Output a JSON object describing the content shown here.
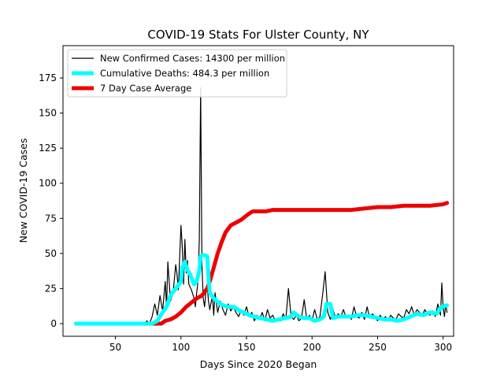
{
  "chart_data": {
    "type": "line",
    "title": "COVID-19 Stats For Ulster County, NY",
    "xlabel": "Days Since 2020 Began",
    "ylabel": "New COVID-19 Cases",
    "xlim": [
      10,
      308
    ],
    "ylim": [
      -9,
      198
    ],
    "x_ticks": [
      50,
      100,
      150,
      200,
      250,
      300
    ],
    "y_ticks": [
      0,
      25,
      50,
      75,
      100,
      125,
      150,
      175
    ],
    "grid": false,
    "legend_position": "top-left",
    "series": [
      {
        "name": "New Confirmed Cases: 14300 per million",
        "color": "#000000",
        "points": [
          [
            20,
            0
          ],
          [
            72,
            0
          ],
          [
            74,
            2
          ],
          [
            76,
            0
          ],
          [
            78,
            5
          ],
          [
            80,
            14
          ],
          [
            82,
            6
          ],
          [
            84,
            20
          ],
          [
            86,
            9
          ],
          [
            88,
            30
          ],
          [
            89,
            12
          ],
          [
            90,
            44
          ],
          [
            92,
            16
          ],
          [
            94,
            22
          ],
          [
            96,
            42
          ],
          [
            97,
            35
          ],
          [
            98,
            24
          ],
          [
            100,
            70
          ],
          [
            101,
            55
          ],
          [
            102,
            28
          ],
          [
            103,
            60
          ],
          [
            104,
            36
          ],
          [
            105,
            45
          ],
          [
            106,
            28
          ],
          [
            108,
            24
          ],
          [
            110,
            18
          ],
          [
            111,
            12
          ],
          [
            112,
            22
          ],
          [
            113,
            30
          ],
          [
            114,
            60
          ],
          [
            115,
            168
          ],
          [
            116,
            42
          ],
          [
            117,
            18
          ],
          [
            118,
            12
          ],
          [
            119,
            22
          ],
          [
            120,
            28
          ],
          [
            121,
            16
          ],
          [
            122,
            10
          ],
          [
            124,
            20
          ],
          [
            125,
            6
          ],
          [
            126,
            22
          ],
          [
            128,
            8
          ],
          [
            130,
            16
          ],
          [
            132,
            10
          ],
          [
            134,
            6
          ],
          [
            136,
            14
          ],
          [
            138,
            9
          ],
          [
            140,
            12
          ],
          [
            142,
            8
          ],
          [
            144,
            5
          ],
          [
            146,
            10
          ],
          [
            148,
            6
          ],
          [
            150,
            12
          ],
          [
            152,
            5
          ],
          [
            154,
            8
          ],
          [
            156,
            2
          ],
          [
            158,
            6
          ],
          [
            160,
            3
          ],
          [
            162,
            8
          ],
          [
            164,
            2
          ],
          [
            166,
            10
          ],
          [
            168,
            4
          ],
          [
            170,
            6
          ],
          [
            172,
            2
          ],
          [
            174,
            4
          ],
          [
            176,
            2
          ],
          [
            178,
            7
          ],
          [
            180,
            3
          ],
          [
            182,
            25
          ],
          [
            184,
            5
          ],
          [
            186,
            3
          ],
          [
            188,
            6
          ],
          [
            190,
            2
          ],
          [
            192,
            4
          ],
          [
            194,
            17
          ],
          [
            196,
            3
          ],
          [
            198,
            6
          ],
          [
            200,
            2
          ],
          [
            202,
            10
          ],
          [
            204,
            3
          ],
          [
            206,
            5
          ],
          [
            208,
            20
          ],
          [
            210,
            37
          ],
          [
            212,
            8
          ],
          [
            214,
            3
          ],
          [
            216,
            10
          ],
          [
            218,
            4
          ],
          [
            220,
            7
          ],
          [
            222,
            5
          ],
          [
            224,
            10
          ],
          [
            226,
            4
          ],
          [
            228,
            6
          ],
          [
            230,
            3
          ],
          [
            232,
            12
          ],
          [
            234,
            5
          ],
          [
            236,
            4
          ],
          [
            238,
            8
          ],
          [
            240,
            3
          ],
          [
            242,
            12
          ],
          [
            244,
            4
          ],
          [
            246,
            7
          ],
          [
            248,
            5
          ],
          [
            250,
            2
          ],
          [
            252,
            6
          ],
          [
            254,
            3
          ],
          [
            256,
            5
          ],
          [
            258,
            2
          ],
          [
            260,
            6
          ],
          [
            262,
            4
          ],
          [
            264,
            3
          ],
          [
            266,
            7
          ],
          [
            268,
            5
          ],
          [
            270,
            4
          ],
          [
            272,
            10
          ],
          [
            274,
            7
          ],
          [
            276,
            12
          ],
          [
            278,
            6
          ],
          [
            280,
            10
          ],
          [
            282,
            8
          ],
          [
            284,
            5
          ],
          [
            286,
            10
          ],
          [
            288,
            7
          ],
          [
            290,
            6
          ],
          [
            292,
            9
          ],
          [
            294,
            5
          ],
          [
            296,
            14
          ],
          [
            298,
            6
          ],
          [
            299,
            29
          ],
          [
            300,
            12
          ],
          [
            301,
            5
          ],
          [
            302,
            14
          ],
          [
            303,
            8
          ]
        ]
      },
      {
        "name": "Cumulative Deaths: 484.3 per million",
        "color": "#00ffff",
        "points": [
          [
            20,
            0
          ],
          [
            78,
            0
          ],
          [
            82,
            2
          ],
          [
            86,
            8
          ],
          [
            89,
            12
          ],
          [
            92,
            20
          ],
          [
            96,
            25
          ],
          [
            100,
            30
          ],
          [
            101,
            40
          ],
          [
            103,
            44
          ],
          [
            105,
            38
          ],
          [
            107,
            35
          ],
          [
            110,
            28
          ],
          [
            112,
            30
          ],
          [
            114,
            38
          ],
          [
            115,
            48
          ],
          [
            117,
            49
          ],
          [
            120,
            48
          ],
          [
            121,
            33
          ],
          [
            122,
            22
          ],
          [
            125,
            18
          ],
          [
            130,
            14
          ],
          [
            135,
            12
          ],
          [
            140,
            12
          ],
          [
            142,
            11
          ],
          [
            145,
            9
          ],
          [
            148,
            8
          ],
          [
            152,
            6
          ],
          [
            156,
            5
          ],
          [
            160,
            4
          ],
          [
            165,
            3
          ],
          [
            170,
            2
          ],
          [
            175,
            3
          ],
          [
            180,
            4
          ],
          [
            184,
            5
          ],
          [
            186,
            8
          ],
          [
            190,
            5
          ],
          [
            194,
            4
          ],
          [
            198,
            4
          ],
          [
            202,
            2
          ],
          [
            206,
            3
          ],
          [
            209,
            5
          ],
          [
            211,
            14
          ],
          [
            214,
            14
          ],
          [
            216,
            4
          ],
          [
            220,
            5
          ],
          [
            225,
            5
          ],
          [
            230,
            5
          ],
          [
            235,
            6
          ],
          [
            240,
            6
          ],
          [
            245,
            5
          ],
          [
            250,
            4
          ],
          [
            255,
            3
          ],
          [
            260,
            3
          ],
          [
            265,
            2
          ],
          [
            270,
            3
          ],
          [
            275,
            5
          ],
          [
            280,
            7
          ],
          [
            285,
            6
          ],
          [
            290,
            8
          ],
          [
            295,
            7
          ],
          [
            299,
            12
          ],
          [
            303,
            13
          ]
        ]
      },
      {
        "name": "7 Day Case Average",
        "color": "#ee0000",
        "points": [
          [
            20,
            0
          ],
          [
            85,
            0
          ],
          [
            88,
            2
          ],
          [
            92,
            3
          ],
          [
            96,
            5
          ],
          [
            100,
            8
          ],
          [
            104,
            12
          ],
          [
            108,
            15
          ],
          [
            112,
            18
          ],
          [
            116,
            20
          ],
          [
            120,
            25
          ],
          [
            122,
            30
          ],
          [
            125,
            40
          ],
          [
            128,
            50
          ],
          [
            131,
            58
          ],
          [
            134,
            65
          ],
          [
            138,
            70
          ],
          [
            142,
            72
          ],
          [
            146,
            74
          ],
          [
            150,
            77
          ],
          [
            153,
            79
          ],
          [
            155,
            80
          ],
          [
            160,
            80
          ],
          [
            165,
            80
          ],
          [
            170,
            81
          ],
          [
            180,
            81
          ],
          [
            190,
            81
          ],
          [
            200,
            81
          ],
          [
            210,
            81
          ],
          [
            220,
            81
          ],
          [
            230,
            81
          ],
          [
            240,
            82
          ],
          [
            250,
            83
          ],
          [
            260,
            83
          ],
          [
            270,
            84
          ],
          [
            280,
            84
          ],
          [
            290,
            84
          ],
          [
            300,
            85
          ],
          [
            303,
            86
          ]
        ]
      }
    ]
  }
}
